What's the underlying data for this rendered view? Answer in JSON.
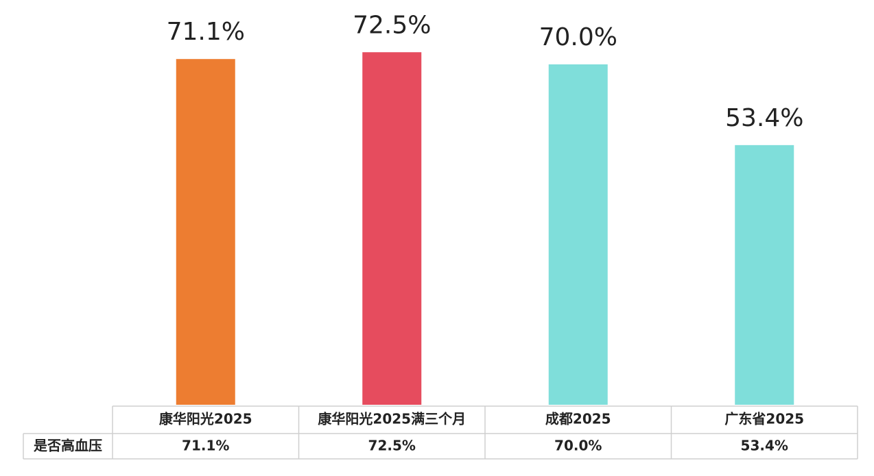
{
  "chart_data": {
    "type": "bar",
    "categories": [
      "康华阳光2025",
      "康华阳光2025满三个月",
      "成都2025",
      "广东省2025"
    ],
    "values": [
      71.1,
      72.5,
      70.0,
      53.4
    ],
    "value_labels": [
      "71.1%",
      "72.5%",
      "70.0%",
      "53.4%"
    ],
    "colors": [
      "#ED7D31",
      "#E64C5E",
      "#7FDEDA",
      "#7FDEDA"
    ],
    "ylim": [
      0,
      80
    ],
    "table_row_label": "是否高血压"
  }
}
